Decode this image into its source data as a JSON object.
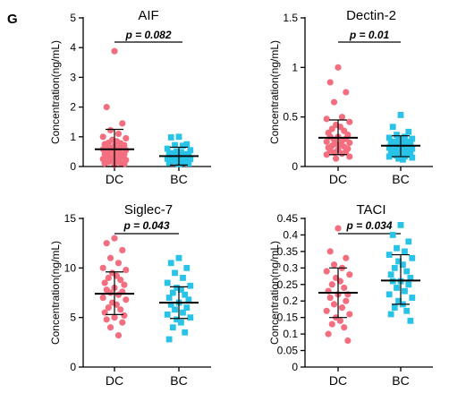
{
  "panel_label": "G",
  "colors": {
    "DC": "#f36f80",
    "BC": "#29c3e8"
  },
  "chart_data": [
    {
      "type": "scatter",
      "title": "AIF",
      "annotation": "p = 0.082",
      "ylabel": "Concentration(ng/mL)",
      "categories": [
        "DC",
        "BC"
      ],
      "ylim": [
        0,
        5
      ],
      "yticks": [
        0,
        1,
        2,
        3,
        4,
        5
      ],
      "tick_labels": [
        "0",
        "1",
        "2",
        "3",
        "4",
        "5"
      ],
      "grid": false,
      "series": [
        {
          "name": "DC",
          "mean": 0.58,
          "sd_low": 0.0,
          "sd_high": 1.25,
          "values": [
            3.88,
            2.0,
            1.45,
            1.22,
            1.1,
            1.0,
            0.95,
            0.9,
            0.85,
            0.8,
            0.78,
            0.75,
            0.72,
            0.7,
            0.68,
            0.65,
            0.62,
            0.6,
            0.58,
            0.55,
            0.52,
            0.5,
            0.48,
            0.45,
            0.42,
            0.4,
            0.38,
            0.35,
            0.32,
            0.3,
            0.28,
            0.25,
            0.22,
            0.2,
            0.18,
            0.15,
            0.12,
            0.1,
            0.08,
            0.05
          ]
        },
        {
          "name": "BC",
          "mean": 0.35,
          "sd_low": 0.05,
          "sd_high": 0.65,
          "values": [
            1.0,
            0.98,
            0.75,
            0.72,
            0.7,
            0.6,
            0.55,
            0.5,
            0.48,
            0.45,
            0.42,
            0.4,
            0.38,
            0.36,
            0.35,
            0.33,
            0.3,
            0.28,
            0.26,
            0.25,
            0.22,
            0.2,
            0.18,
            0.15,
            0.12,
            0.1,
            0.08
          ]
        }
      ]
    },
    {
      "type": "scatter",
      "title": "Dectin-2",
      "annotation": "p = 0.01",
      "ylabel": "Concentration(ng/mL)",
      "categories": [
        "DC",
        "BC"
      ],
      "ylim": [
        0,
        1.5
      ],
      "yticks": [
        0,
        0.5,
        1.0,
        1.5
      ],
      "tick_labels": [
        "0",
        "0.5",
        "1",
        "1.5"
      ],
      "grid": false,
      "series": [
        {
          "name": "DC",
          "mean": 0.29,
          "sd_low": 0.12,
          "sd_high": 0.47,
          "values": [
            1.0,
            0.85,
            0.75,
            0.65,
            0.5,
            0.48,
            0.45,
            0.42,
            0.4,
            0.38,
            0.36,
            0.34,
            0.32,
            0.3,
            0.3,
            0.28,
            0.27,
            0.26,
            0.25,
            0.24,
            0.23,
            0.22,
            0.21,
            0.2,
            0.19,
            0.18,
            0.17,
            0.16,
            0.15,
            0.14,
            0.13,
            0.12,
            0.1,
            0.08
          ]
        },
        {
          "name": "BC",
          "mean": 0.21,
          "sd_low": 0.1,
          "sd_high": 0.31,
          "values": [
            0.52,
            0.4,
            0.35,
            0.32,
            0.3,
            0.29,
            0.28,
            0.27,
            0.26,
            0.25,
            0.25,
            0.24,
            0.23,
            0.22,
            0.22,
            0.21,
            0.2,
            0.2,
            0.19,
            0.18,
            0.18,
            0.17,
            0.16,
            0.15,
            0.15,
            0.14,
            0.13,
            0.12,
            0.12,
            0.11,
            0.1,
            0.1,
            0.09,
            0.08,
            0.07
          ]
        }
      ]
    },
    {
      "type": "scatter",
      "title": "Siglec-7",
      "annotation": "p = 0.043",
      "ylabel": "Concentration(ng/mL)",
      "categories": [
        "DC",
        "BC"
      ],
      "ylim": [
        0,
        15
      ],
      "yticks": [
        0,
        5,
        10,
        15
      ],
      "tick_labels": [
        "0",
        "5",
        "10",
        "15"
      ],
      "grid": false,
      "series": [
        {
          "name": "DC",
          "mean": 7.4,
          "sd_low": 5.3,
          "sd_high": 9.6,
          "values": [
            13.0,
            12.5,
            11.8,
            11.0,
            10.5,
            10.0,
            9.8,
            9.5,
            9.2,
            9.0,
            8.8,
            8.5,
            8.3,
            8.0,
            7.8,
            7.6,
            7.5,
            7.3,
            7.0,
            6.8,
            6.5,
            6.3,
            6.0,
            5.8,
            5.5,
            5.2,
            5.0,
            4.8,
            4.5,
            4.0,
            3.2
          ]
        },
        {
          "name": "BC",
          "mean": 6.5,
          "sd_low": 4.9,
          "sd_high": 8.1,
          "values": [
            11.0,
            10.5,
            10.0,
            9.5,
            9.0,
            8.5,
            8.2,
            8.0,
            7.8,
            7.5,
            7.3,
            7.0,
            6.8,
            6.5,
            6.3,
            6.0,
            5.8,
            5.5,
            5.3,
            5.0,
            4.8,
            4.5,
            4.0,
            3.5,
            2.8
          ]
        }
      ]
    },
    {
      "type": "scatter",
      "title": "TACI",
      "annotation": "p = 0.034",
      "ylabel": "Concentration(ng/mL)",
      "categories": [
        "DC",
        "BC"
      ],
      "ylim": [
        0,
        0.45
      ],
      "yticks": [
        0,
        0.05,
        0.1,
        0.15,
        0.2,
        0.25,
        0.3,
        0.35,
        0.4,
        0.45
      ],
      "tick_labels": [
        "0",
        "0.05",
        "0.1",
        "0.15",
        "0.2",
        "0.25",
        "0.3",
        "0.35",
        "0.4",
        "0.45"
      ],
      "grid": false,
      "series": [
        {
          "name": "DC",
          "mean": 0.225,
          "sd_low": 0.15,
          "sd_high": 0.3,
          "values": [
            0.42,
            0.35,
            0.33,
            0.31,
            0.3,
            0.29,
            0.28,
            0.27,
            0.26,
            0.25,
            0.24,
            0.23,
            0.22,
            0.22,
            0.21,
            0.2,
            0.19,
            0.18,
            0.17,
            0.16,
            0.15,
            0.14,
            0.13,
            0.12,
            0.1,
            0.08
          ]
        },
        {
          "name": "BC",
          "mean": 0.262,
          "sd_low": 0.19,
          "sd_high": 0.34,
          "values": [
            0.43,
            0.4,
            0.38,
            0.36,
            0.35,
            0.34,
            0.33,
            0.32,
            0.31,
            0.3,
            0.29,
            0.28,
            0.27,
            0.26,
            0.26,
            0.25,
            0.24,
            0.23,
            0.22,
            0.21,
            0.2,
            0.19,
            0.18,
            0.17,
            0.16,
            0.14
          ]
        }
      ]
    }
  ]
}
